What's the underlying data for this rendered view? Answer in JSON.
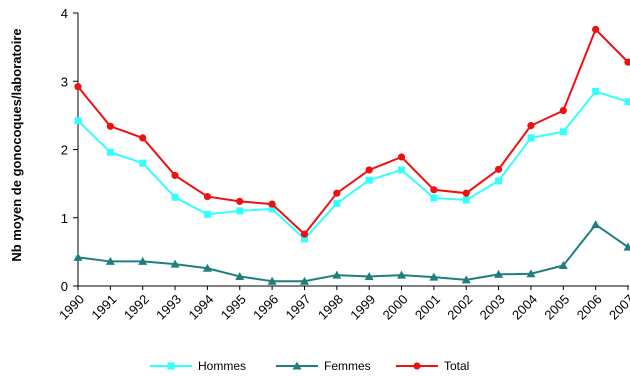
{
  "chart_data": {
    "type": "line",
    "title": "",
    "xlabel": "",
    "ylabel": "Nb moyen de gonocoques/laboratoire",
    "ylim": [
      0,
      4
    ],
    "yticks": [
      "0",
      "1",
      "2",
      "3",
      "4"
    ],
    "grid": false,
    "legend_position": "bottom",
    "categories": [
      "1990",
      "1991",
      "1992",
      "1993",
      "1994",
      "1995",
      "1996",
      "1997",
      "1998",
      "1999",
      "2000",
      "2001",
      "2002",
      "2003",
      "2004",
      "2005",
      "2006",
      "2007"
    ],
    "series": [
      {
        "name": "Hommes",
        "color": "#33ffff",
        "marker": "square",
        "values": [
          2.42,
          1.96,
          1.8,
          1.3,
          1.05,
          1.1,
          1.13,
          0.69,
          1.21,
          1.55,
          1.7,
          1.29,
          1.26,
          1.54,
          2.17,
          2.26,
          2.85,
          2.7
        ]
      },
      {
        "name": "Femmes",
        "color": "#1f7f7f",
        "marker": "triangle",
        "values": [
          0.42,
          0.36,
          0.36,
          0.32,
          0.26,
          0.14,
          0.07,
          0.07,
          0.16,
          0.14,
          0.16,
          0.13,
          0.09,
          0.17,
          0.18,
          0.3,
          0.9,
          0.57
        ]
      },
      {
        "name": "Total",
        "color": "#ee1111",
        "marker": "circle",
        "values": [
          2.92,
          2.34,
          2.17,
          1.62,
          1.31,
          1.24,
          1.2,
          0.76,
          1.36,
          1.7,
          1.89,
          1.41,
          1.36,
          1.71,
          2.35,
          2.57,
          3.76,
          3.28
        ]
      }
    ]
  }
}
